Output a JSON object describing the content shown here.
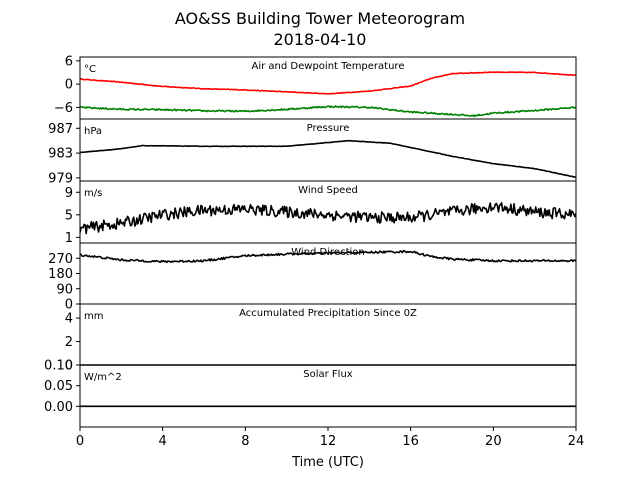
{
  "title": "AO&SS Building Tower Meteorogram",
  "subtitle": "2018-04-10",
  "xlabel": "Time (UTC)",
  "chart_data": {
    "type": "line",
    "x_range": [
      0,
      24
    ],
    "x_ticks": [
      0,
      4,
      8,
      12,
      16,
      20,
      24
    ],
    "panels": [
      {
        "id": "temperature",
        "title": "Air and Dewpoint Temperature",
        "units": "°C",
        "ylim": [
          -9,
          7
        ],
        "yticks": [
          6,
          0,
          -6
        ],
        "ytick_labels": [
          "6",
          "0",
          "−6"
        ],
        "series": [
          {
            "color": "#ff0000",
            "noise": 0.08,
            "points": [
              [
                0,
                1.3
              ],
              [
                2,
                0.5
              ],
              [
                4,
                -0.6
              ],
              [
                6,
                -1.2
              ],
              [
                8,
                -1.5
              ],
              [
                10,
                -2
              ],
              [
                12,
                -2.5
              ],
              [
                14,
                -1.8
              ],
              [
                16,
                -0.5
              ],
              [
                17,
                1.5
              ],
              [
                18,
                2.7
              ],
              [
                20,
                3.1
              ],
              [
                22,
                3.0
              ],
              [
                24,
                2.3
              ]
            ]
          },
          {
            "color": "#008000",
            "noise": 0.2,
            "points": [
              [
                0,
                -6
              ],
              [
                2,
                -6.5
              ],
              [
                4,
                -6.6
              ],
              [
                6,
                -6.9
              ],
              [
                8,
                -7
              ],
              [
                10,
                -6.5
              ],
              [
                12,
                -5.8
              ],
              [
                14,
                -6
              ],
              [
                16,
                -7.2
              ],
              [
                18,
                -7.8
              ],
              [
                19,
                -8.2
              ],
              [
                20,
                -7.5
              ],
              [
                22,
                -6.8
              ],
              [
                24,
                -6
              ]
            ]
          }
        ]
      },
      {
        "id": "pressure",
        "title": "Pressure",
        "units": "hPa",
        "ylim": [
          978.5,
          988.5
        ],
        "yticks": [
          987,
          983,
          979
        ],
        "ytick_labels": [
          "987",
          "983",
          "979"
        ],
        "series": [
          {
            "color": "#000000",
            "noise": 0.03,
            "points": [
              [
                0,
                983.1
              ],
              [
                2,
                983.7
              ],
              [
                3,
                984.2
              ],
              [
                6,
                984.1
              ],
              [
                10,
                984.1
              ],
              [
                13,
                985
              ],
              [
                15,
                984.6
              ],
              [
                18,
                982.5
              ],
              [
                20,
                981.3
              ],
              [
                22,
                980.5
              ],
              [
                24,
                979.1
              ]
            ]
          }
        ]
      },
      {
        "id": "wind_speed",
        "title": "Wind Speed",
        "units": "m/s",
        "ylim": [
          0,
          11
        ],
        "yticks": [
          9,
          5,
          1
        ],
        "ytick_labels": [
          "9",
          "5",
          "1"
        ],
        "series": [
          {
            "color": "#000000",
            "noise": 1.0,
            "points": [
              [
                0,
                2.5
              ],
              [
                2,
                3.5
              ],
              [
                4,
                5
              ],
              [
                6,
                5.8
              ],
              [
                8,
                6
              ],
              [
                10,
                5.5
              ],
              [
                12,
                5
              ],
              [
                14,
                4.5
              ],
              [
                16,
                4.5
              ],
              [
                18,
                5.5
              ],
              [
                20,
                6.5
              ],
              [
                22,
                5.5
              ],
              [
                24,
                5
              ]
            ]
          }
        ]
      },
      {
        "id": "wind_direction",
        "title": "Wind Direction",
        "units": "",
        "ylim": [
          0,
          360
        ],
        "yticks": [
          270,
          180,
          90,
          0
        ],
        "ytick_labels": [
          "270",
          "180",
          "90",
          "0"
        ],
        "series": [
          {
            "color": "#000000",
            "noise": 6,
            "points": [
              [
                0,
                290
              ],
              [
                2,
                260
              ],
              [
                4,
                250
              ],
              [
                6,
                255
              ],
              [
                8,
                285
              ],
              [
                10,
                295
              ],
              [
                12,
                300
              ],
              [
                14,
                305
              ],
              [
                16,
                310
              ],
              [
                17,
                280
              ],
              [
                18,
                265
              ],
              [
                20,
                255
              ],
              [
                22,
                255
              ],
              [
                24,
                255
              ]
            ]
          }
        ]
      },
      {
        "id": "precip",
        "title": "Accumulated Precipitation Since 0Z",
        "units": "mm",
        "ylim": [
          0,
          5.2
        ],
        "yticks": [
          4,
          2,
          0
        ],
        "ytick_labels": [
          "4",
          "2",
          "0"
        ],
        "series": [
          {
            "color": "#000000",
            "noise": 0,
            "points": [
              [
                0,
                0
              ],
              [
                24,
                0
              ]
            ]
          }
        ]
      },
      {
        "id": "solar",
        "title": "Solar Flux",
        "units": "W/m^2",
        "ylim": [
          -0.05,
          0.1
        ],
        "yticks": [
          0.1,
          0.05,
          0.0
        ],
        "ytick_labels": [
          "0.10",
          "0.05",
          "0.00"
        ],
        "series": [
          {
            "color": "#000000",
            "noise": 0,
            "points": [
              [
                0,
                0
              ],
              [
                24,
                0
              ]
            ]
          }
        ]
      }
    ]
  }
}
